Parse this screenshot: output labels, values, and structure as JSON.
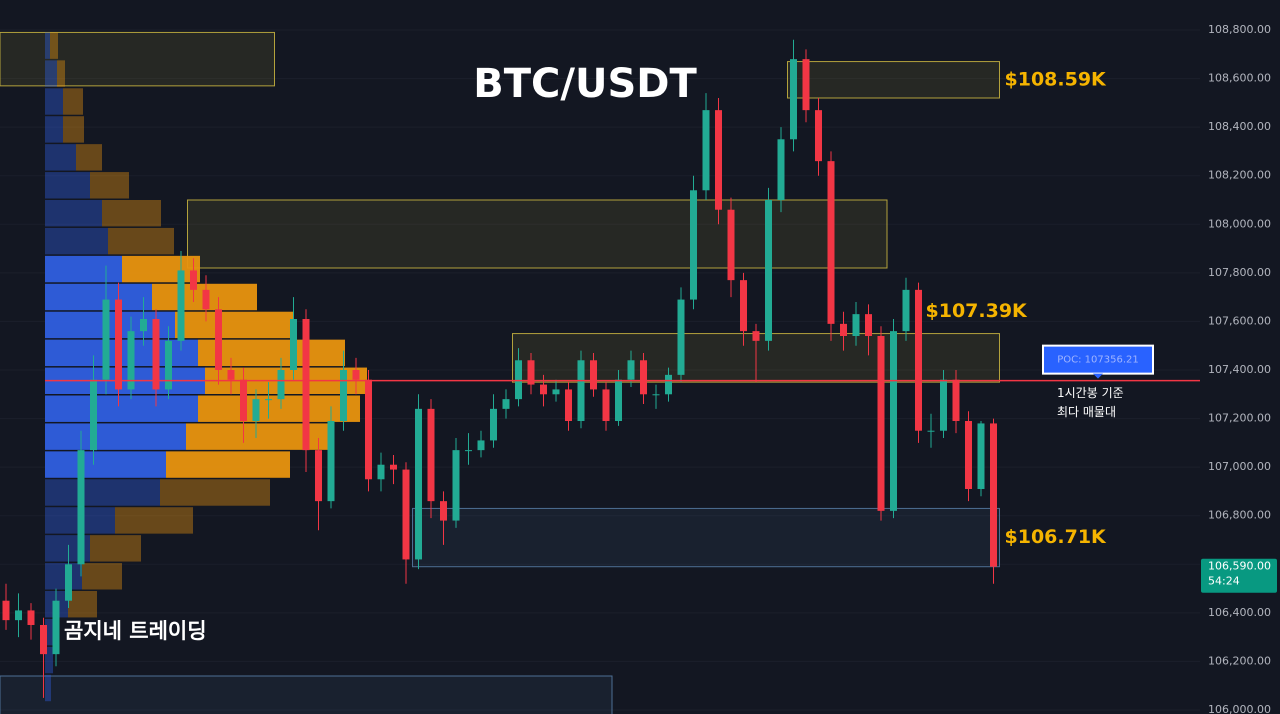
{
  "chart_data": {
    "type": "candlestick",
    "title": "BTC/USDT",
    "watermark": "곰지네 트레이딩",
    "up_color": "#22ab94",
    "down_color": "#f23645",
    "candles": [
      [
        106450,
        106520,
        106330,
        106370
      ],
      [
        106370,
        106480,
        106300,
        106410
      ],
      [
        106410,
        106440,
        106290,
        106350
      ],
      [
        106350,
        106380,
        106050,
        106230
      ],
      [
        106230,
        106500,
        106180,
        106450
      ],
      [
        106450,
        106680,
        106420,
        106600
      ],
      [
        106600,
        107150,
        106550,
        107070
      ],
      [
        107070,
        107460,
        107010,
        107360
      ],
      [
        107360,
        107830,
        107300,
        107690
      ],
      [
        107690,
        107760,
        107250,
        107320
      ],
      [
        107320,
        107620,
        107280,
        107560
      ],
      [
        107560,
        107700,
        107500,
        107610
      ],
      [
        107610,
        107650,
        107250,
        107320
      ],
      [
        107320,
        107580,
        107280,
        107520
      ],
      [
        107520,
        107890,
        107480,
        107810
      ],
      [
        107810,
        107860,
        107680,
        107730
      ],
      [
        107730,
        107790,
        107600,
        107650
      ],
      [
        107650,
        107700,
        107340,
        107400
      ],
      [
        107400,
        107450,
        107300,
        107360
      ],
      [
        107360,
        107410,
        107100,
        107190
      ],
      [
        107190,
        107320,
        107120,
        107280
      ],
      [
        107280,
        107350,
        107200,
        107280
      ],
      [
        107280,
        107450,
        107240,
        107400
      ],
      [
        107400,
        107700,
        107360,
        107610
      ],
      [
        107610,
        107650,
        106980,
        107070
      ],
      [
        107070,
        107120,
        106740,
        106860
      ],
      [
        106860,
        107250,
        106830,
        107190
      ],
      [
        107190,
        107480,
        107150,
        107400
      ],
      [
        107400,
        107450,
        107300,
        107360
      ],
      [
        107360,
        107400,
        106900,
        106950
      ],
      [
        106950,
        107060,
        106900,
        107010
      ],
      [
        107010,
        107050,
        106930,
        106990
      ],
      [
        106990,
        107020,
        106520,
        106620
      ],
      [
        106620,
        107300,
        106580,
        107240
      ],
      [
        107240,
        107280,
        106790,
        106860
      ],
      [
        106860,
        106900,
        106680,
        106780
      ],
      [
        106780,
        107120,
        106750,
        107070
      ],
      [
        107070,
        107140,
        107010,
        107070
      ],
      [
        107070,
        107150,
        107040,
        107110
      ],
      [
        107110,
        107300,
        107080,
        107240
      ],
      [
        107240,
        107320,
        107200,
        107280
      ],
      [
        107280,
        107490,
        107250,
        107440
      ],
      [
        107440,
        107470,
        107300,
        107340
      ],
      [
        107340,
        107380,
        107250,
        107300
      ],
      [
        107300,
        107360,
        107270,
        107320
      ],
      [
        107320,
        107350,
        107150,
        107190
      ],
      [
        107190,
        107480,
        107160,
        107440
      ],
      [
        107440,
        107470,
        107290,
        107320
      ],
      [
        107320,
        107350,
        107150,
        107190
      ],
      [
        107190,
        107400,
        107170,
        107360
      ],
      [
        107360,
        107480,
        107330,
        107440
      ],
      [
        107440,
        107470,
        107260,
        107300
      ],
      [
        107300,
        107340,
        107240,
        107300
      ],
      [
        107300,
        107410,
        107270,
        107380
      ],
      [
        107380,
        107740,
        107350,
        107690
      ],
      [
        107690,
        108200,
        107650,
        108140
      ],
      [
        108140,
        108540,
        108100,
        108470
      ],
      [
        108470,
        108520,
        108000,
        108060
      ],
      [
        108060,
        108110,
        107700,
        107770
      ],
      [
        107770,
        107800,
        107500,
        107560
      ],
      [
        107560,
        107590,
        107350,
        107520
      ],
      [
        107520,
        108150,
        107480,
        108100
      ],
      [
        108100,
        108400,
        108050,
        108350
      ],
      [
        108350,
        108760,
        108300,
        108680
      ],
      [
        108680,
        108720,
        108420,
        108470
      ],
      [
        108470,
        108520,
        108200,
        108260
      ],
      [
        108260,
        108300,
        107520,
        107590
      ],
      [
        107590,
        107640,
        107480,
        107540
      ],
      [
        107540,
        107680,
        107500,
        107630
      ],
      [
        107630,
        107670,
        107460,
        107540
      ],
      [
        107540,
        107580,
        106780,
        106820
      ],
      [
        106820,
        107610,
        106790,
        107560
      ],
      [
        107560,
        107780,
        107520,
        107730
      ],
      [
        107730,
        107760,
        107100,
        107150
      ],
      [
        107150,
        107220,
        107080,
        107150
      ],
      [
        107150,
        107400,
        107120,
        107360
      ],
      [
        107360,
        107400,
        107140,
        107190
      ],
      [
        107190,
        107230,
        106860,
        106910
      ],
      [
        106910,
        107190,
        106880,
        107180
      ],
      [
        107180,
        107200,
        106520,
        106590
      ]
    ],
    "ylim": [
      106000,
      108800
    ],
    "yticks": [
      {
        "value": 106000,
        "label": "106,000.00"
      },
      {
        "value": 106200,
        "label": "106,200.00"
      },
      {
        "value": 106400,
        "label": "106,400.00"
      },
      {
        "value": 106600,
        "label": "106,600.00"
      },
      {
        "value": 106800,
        "label": "106,800.00"
      },
      {
        "value": 107000,
        "label": "107,000.00"
      },
      {
        "value": 107200,
        "label": "107,200.00"
      },
      {
        "value": 107400,
        "label": "107,400.00"
      },
      {
        "value": 107600,
        "label": "107,600.00"
      },
      {
        "value": 107800,
        "label": "107,800.00"
      },
      {
        "value": 108000,
        "label": "108,000.00"
      },
      {
        "value": 108200,
        "label": "108,200.00"
      },
      {
        "value": 108400,
        "label": "108,400.00"
      },
      {
        "value": 108600,
        "label": "108,600.00"
      },
      {
        "value": 108800,
        "label": "108,800.00"
      }
    ],
    "grid": true,
    "volume_profile": {
      "bins": [
        108790,
        108675,
        108560,
        108445,
        108330,
        108215,
        108100,
        107985,
        107870,
        107755,
        107640,
        107525,
        107410,
        107295,
        107180,
        107065,
        106950,
        106835,
        106720,
        106605,
        106490,
        106375,
        106260,
        106145,
        106030
      ],
      "up": [
        5,
        12,
        18,
        18,
        31,
        45,
        57,
        63,
        77,
        107,
        130,
        153,
        160,
        153,
        141,
        121,
        115,
        70,
        45,
        37,
        23,
        10,
        8,
        6
      ],
      "down": [
        8,
        8,
        20,
        21,
        26,
        39,
        59,
        66,
        78,
        105,
        118,
        147,
        162,
        162,
        146,
        124,
        110,
        78,
        51,
        40,
        29,
        0,
        0,
        0
      ],
      "up_color": "#2f5fe0",
      "down_color": "#e8940f",
      "value_area": [
        106950,
        107870
      ]
    },
    "zones": [
      {
        "start": 0,
        "end": 21,
        "high": 108790,
        "low": 108570,
        "color": "#b3a23c"
      },
      {
        "start": 15,
        "end": 70,
        "high": 108100,
        "low": 107820,
        "color": "#b3a23c"
      },
      {
        "start": 63,
        "end": 79,
        "high": 108670,
        "low": 108520,
        "color": "#b3a23c",
        "label": "$108.59K",
        "label_side": "right"
      },
      {
        "start": 41,
        "end": 79,
        "high": 107550,
        "low": 107350,
        "color": "#b3a23c",
        "label": "$107.39K",
        "label_side": "top"
      },
      {
        "start": 33,
        "end": 79,
        "high": 106830,
        "low": 106590,
        "color": "#4d6f94",
        "label": "$106.71K",
        "label_side": "right"
      },
      {
        "start": 0,
        "end": 48,
        "high": 106140,
        "low": 105980,
        "color": "#4d6f94"
      }
    ],
    "poc": {
      "value": 107356.21,
      "label": "POC: 107356.21",
      "color": "#f23645",
      "note": [
        "1시간봉 기준",
        "최다 매물대"
      ]
    },
    "last_price": {
      "value": 106590,
      "label": "106,590.00",
      "countdown": "54:24",
      "color": "#089981"
    }
  }
}
